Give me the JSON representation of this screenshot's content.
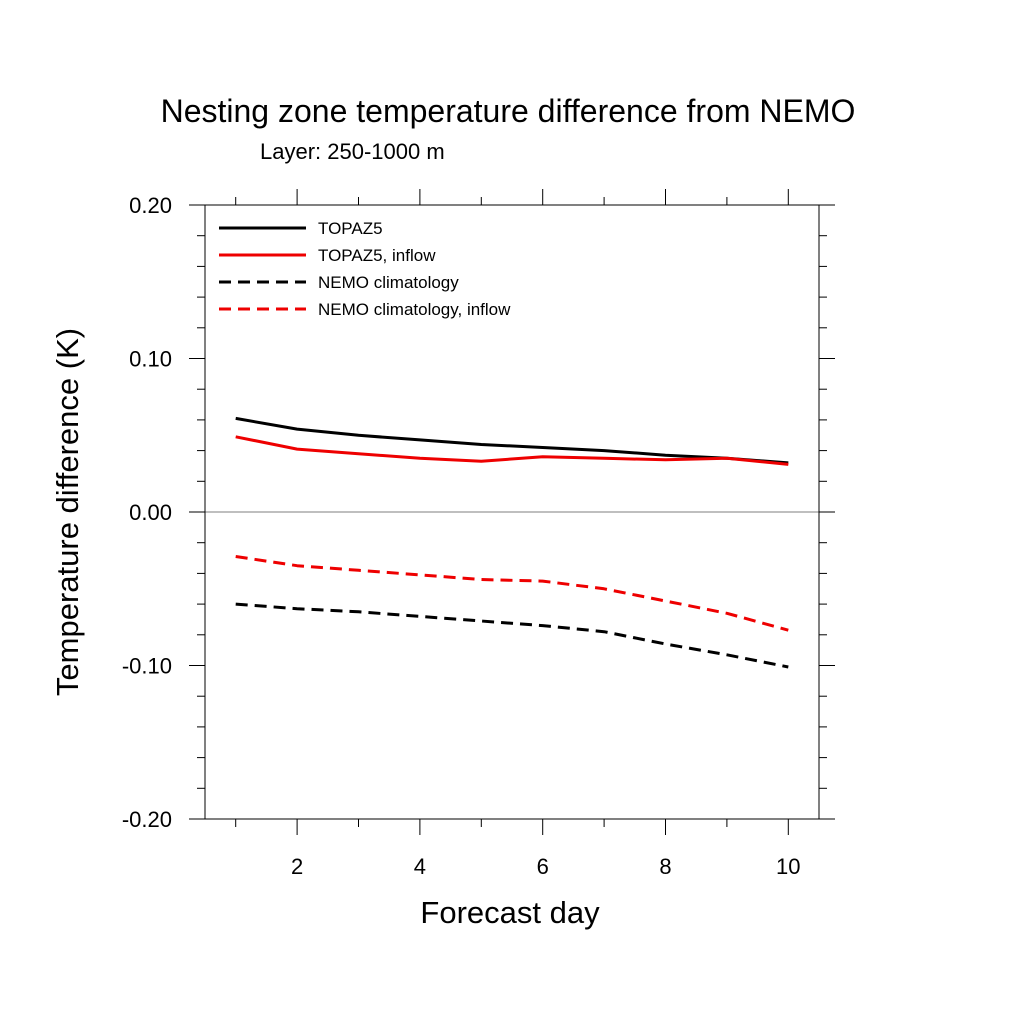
{
  "chart_data": {
    "type": "line",
    "title": "Nesting zone temperature difference from NEMO",
    "subtitle": "Layer: 250-1000 m",
    "xlabel": "Forecast day",
    "ylabel": "Temperature difference (K)",
    "xlim": [
      0.5,
      10.5
    ],
    "ylim": [
      -0.2,
      0.2
    ],
    "x_ticks": [
      2,
      4,
      6,
      8,
      10
    ],
    "x_tick_labels": [
      "2",
      "4",
      "6",
      "8",
      "10"
    ],
    "y_ticks": [
      -0.2,
      -0.1,
      0.0,
      0.1,
      0.2
    ],
    "y_tick_labels": [
      "-0.20",
      "-0.10",
      "0.00",
      "0.10",
      "0.20"
    ],
    "zero_line": true,
    "grid": false,
    "legend_position": "top-left",
    "x": [
      1,
      2,
      3,
      4,
      5,
      6,
      7,
      8,
      9,
      10
    ],
    "series": [
      {
        "name": "TOPAZ5",
        "color": "#000000",
        "dash": "solid",
        "values": [
          0.061,
          0.054,
          0.05,
          0.047,
          0.044,
          0.042,
          0.04,
          0.037,
          0.035,
          0.032
        ]
      },
      {
        "name": "TOPAZ5, inflow",
        "color": "#ee0000",
        "dash": "solid",
        "values": [
          0.049,
          0.041,
          0.038,
          0.035,
          0.033,
          0.036,
          0.035,
          0.034,
          0.035,
          0.031
        ]
      },
      {
        "name": "NEMO climatology",
        "color": "#000000",
        "dash": "dashed",
        "values": [
          -0.06,
          -0.063,
          -0.065,
          -0.068,
          -0.071,
          -0.074,
          -0.078,
          -0.086,
          -0.093,
          -0.101
        ]
      },
      {
        "name": "NEMO climatology, inflow",
        "color": "#ee0000",
        "dash": "dashed",
        "values": [
          -0.029,
          -0.035,
          -0.038,
          -0.041,
          -0.044,
          -0.045,
          -0.05,
          -0.058,
          -0.066,
          -0.077
        ]
      }
    ]
  }
}
